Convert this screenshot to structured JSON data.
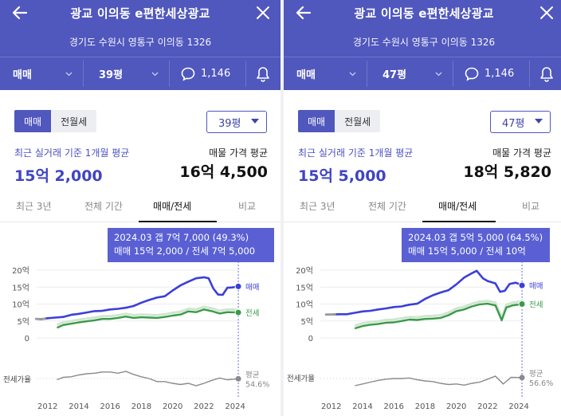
{
  "colors": {
    "header": "#5057bd",
    "accent": "#3f45c2",
    "sale": "#3c3fd8",
    "jeonse": "#3a9a48",
    "ratio": "#8a8a8a"
  },
  "panels": [
    {
      "title": "광교 이의동 e편한세상광교",
      "address": "경기도 수원시 영통구 이의동 1326",
      "deal_type": "매매",
      "size": "39평",
      "comments": "1,146",
      "toggle": {
        "on": "매매",
        "off": "전월세"
      },
      "size_select": "39평",
      "recent_label": "최근 실거래 기준 1개월 평균",
      "recent_value": "15억 2,000",
      "listing_label": "매물 가격 평균",
      "listing_value": "16억 4,500",
      "tabs": [
        "최근 3년",
        "전체 기간",
        "매매/전세",
        "비교"
      ],
      "tooltip": {
        "line1": "2024.03  갭 7억 7,000 (49.3%)",
        "line2": "매매 15억 2,000 / 전세 7억 5,000"
      },
      "chart_data": {
        "type": "line",
        "x_ticks": [
          "2012",
          "2014",
          "2016",
          "2018",
          "2020",
          "2022",
          "2024"
        ],
        "y_ticks": [
          "20억",
          "15억",
          "10억",
          "5억",
          "0"
        ],
        "ylim": [
          0,
          20
        ],
        "series": [
          {
            "name": "매매",
            "values": [
              [
                2011.3,
                5.6
              ],
              [
                2011.6,
                5.5
              ],
              [
                2012.0,
                5.8
              ],
              [
                2012.5,
                6.0
              ],
              [
                2013.0,
                6.2
              ],
              [
                2013.5,
                6.8
              ],
              [
                2014.0,
                7.1
              ],
              [
                2014.5,
                7.5
              ],
              [
                2015.0,
                7.9
              ],
              [
                2015.5,
                8.0
              ],
              [
                2016.0,
                8.4
              ],
              [
                2016.5,
                8.6
              ],
              [
                2017.0,
                8.9
              ],
              [
                2017.5,
                9.4
              ],
              [
                2018.0,
                10.4
              ],
              [
                2018.5,
                11.2
              ],
              [
                2019.0,
                11.9
              ],
              [
                2019.5,
                12.3
              ],
              [
                2020.0,
                14.0
              ],
              [
                2020.5,
                15.5
              ],
              [
                2021.0,
                16.6
              ],
              [
                2021.5,
                17.6
              ],
              [
                2022.0,
                17.9
              ],
              [
                2022.3,
                17.6
              ],
              [
                2022.6,
                14.6
              ],
              [
                2022.9,
                12.8
              ],
              [
                2023.2,
                12.7
              ],
              [
                2023.5,
                14.8
              ],
              [
                2023.8,
                14.9
              ],
              [
                2024.2,
                15.2
              ]
            ]
          },
          {
            "name": "전세",
            "values": [
              [
                2012.6,
                3.0
              ],
              [
                2013.0,
                3.8
              ],
              [
                2013.5,
                4.2
              ],
              [
                2014.0,
                4.6
              ],
              [
                2014.5,
                4.9
              ],
              [
                2015.0,
                5.2
              ],
              [
                2015.5,
                5.6
              ],
              [
                2016.0,
                5.6
              ],
              [
                2016.5,
                5.9
              ],
              [
                2017.0,
                6.3
              ],
              [
                2017.5,
                5.9
              ],
              [
                2018.0,
                6.1
              ],
              [
                2018.5,
                6.0
              ],
              [
                2019.0,
                5.9
              ],
              [
                2019.5,
                6.2
              ],
              [
                2020.0,
                6.6
              ],
              [
                2020.5,
                6.9
              ],
              [
                2021.0,
                7.8
              ],
              [
                2021.5,
                7.6
              ],
              [
                2022.0,
                8.4
              ],
              [
                2022.5,
                7.9
              ],
              [
                2023.0,
                7.2
              ],
              [
                2023.5,
                7.6
              ],
              [
                2024.2,
                7.5
              ]
            ]
          },
          {
            "name": "전세가율",
            "values": [
              [
                2012.6,
                53
              ],
              [
                2013.0,
                57
              ],
              [
                2013.5,
                58
              ],
              [
                2014.0,
                61
              ],
              [
                2014.5,
                63
              ],
              [
                2015.0,
                64
              ],
              [
                2015.5,
                66
              ],
              [
                2016.0,
                66
              ],
              [
                2016.5,
                64
              ],
              [
                2017.0,
                67
              ],
              [
                2017.5,
                62
              ],
              [
                2018.0,
                58
              ],
              [
                2018.5,
                55
              ],
              [
                2019.0,
                50
              ],
              [
                2019.5,
                50
              ],
              [
                2020.0,
                47
              ],
              [
                2020.5,
                45
              ],
              [
                2021.0,
                47
              ],
              [
                2021.5,
                43
              ],
              [
                2022.0,
                47
              ],
              [
                2022.5,
                52
              ],
              [
                2023.0,
                56
              ],
              [
                2023.5,
                53
              ],
              [
                2024.2,
                54.6
              ]
            ]
          }
        ],
        "point_labels": {
          "sale": "매매",
          "jeonse": "전세",
          "ratio_left": "전세가율",
          "ratio_right_1": "평균",
          "ratio_right_2": "54.6%"
        }
      }
    },
    {
      "title": "광교 이의동 e편한세상광교",
      "address": "경기도 수원시 영통구 이의동 1326",
      "deal_type": "매매",
      "size": "47평",
      "comments": "1,146",
      "toggle": {
        "on": "매매",
        "off": "전월세"
      },
      "size_select": "47평",
      "recent_label": "최근 실거래 기준 1개월 평균",
      "recent_value": "15억 5,000",
      "listing_label": "매물 가격 평균",
      "listing_value": "18억 5,820",
      "tabs": [
        "최근 3년",
        "전체 기간",
        "매매/전세",
        "비교"
      ],
      "tooltip": {
        "line1": "2024.03  갭 5억 5,000 (64.5%)",
        "line2": "매매 15억 5,000 / 전세 10억"
      },
      "chart_data": {
        "type": "line",
        "x_ticks": [
          "2012",
          "2014",
          "2016",
          "2018",
          "2020",
          "2022",
          "2024"
        ],
        "y_ticks": [
          "20억",
          "15억",
          "10억",
          "5억",
          "0"
        ],
        "ylim": [
          0,
          20
        ],
        "series": [
          {
            "name": "매매",
            "values": [
              [
                2011.7,
                6.9
              ],
              [
                2012.0,
                6.9
              ],
              [
                2012.5,
                7.0
              ],
              [
                2013.0,
                7.0
              ],
              [
                2013.5,
                7.4
              ],
              [
                2014.0,
                7.8
              ],
              [
                2014.5,
                8.0
              ],
              [
                2015.0,
                8.4
              ],
              [
                2015.5,
                8.7
              ],
              [
                2016.0,
                9.1
              ],
              [
                2016.5,
                9.3
              ],
              [
                2017.0,
                9.8
              ],
              [
                2017.5,
                10.1
              ],
              [
                2018.0,
                11.5
              ],
              [
                2018.5,
                12.6
              ],
              [
                2019.0,
                13.4
              ],
              [
                2019.5,
                14.1
              ],
              [
                2020.0,
                15.8
              ],
              [
                2020.5,
                17.8
              ],
              [
                2021.0,
                19.1
              ],
              [
                2021.3,
                19.8
              ],
              [
                2021.7,
                17.6
              ],
              [
                2022.0,
                16.8
              ],
              [
                2022.5,
                16.1
              ],
              [
                2022.8,
                13.6
              ],
              [
                2023.1,
                13.9
              ],
              [
                2023.4,
                15.9
              ],
              [
                2023.8,
                16.3
              ],
              [
                2024.2,
                15.5
              ]
            ]
          },
          {
            "name": "전세",
            "values": [
              [
                2013.5,
                2.8
              ],
              [
                2014.0,
                3.5
              ],
              [
                2014.5,
                3.9
              ],
              [
                2015.0,
                4.1
              ],
              [
                2015.5,
                4.5
              ],
              [
                2016.0,
                4.6
              ],
              [
                2016.5,
                5.0
              ],
              [
                2017.0,
                5.4
              ],
              [
                2017.5,
                5.3
              ],
              [
                2018.0,
                5.6
              ],
              [
                2018.5,
                5.7
              ],
              [
                2019.0,
                5.9
              ],
              [
                2019.5,
                6.7
              ],
              [
                2020.0,
                7.9
              ],
              [
                2020.5,
                8.4
              ],
              [
                2021.0,
                9.3
              ],
              [
                2021.5,
                9.9
              ],
              [
                2022.0,
                10.1
              ],
              [
                2022.5,
                9.6
              ],
              [
                2022.9,
                5.2
              ],
              [
                2023.2,
                9.0
              ],
              [
                2023.6,
                9.6
              ],
              [
                2024.2,
                10.0
              ]
            ]
          },
          {
            "name": "전세가율",
            "values": [
              [
                2013.5,
                43
              ],
              [
                2014.0,
                46
              ],
              [
                2014.5,
                49
              ],
              [
                2015.0,
                52
              ],
              [
                2015.5,
                54
              ],
              [
                2016.0,
                55
              ],
              [
                2016.5,
                55
              ],
              [
                2017.0,
                56
              ],
              [
                2017.5,
                53
              ],
              [
                2018.0,
                51
              ],
              [
                2018.5,
                50
              ],
              [
                2019.0,
                47
              ],
              [
                2019.5,
                45
              ],
              [
                2020.0,
                46
              ],
              [
                2020.5,
                44
              ],
              [
                2021.0,
                47
              ],
              [
                2021.5,
                49
              ],
              [
                2022.0,
                54
              ],
              [
                2022.5,
                59
              ],
              [
                2023.0,
                46
              ],
              [
                2023.5,
                57
              ],
              [
                2024.2,
                56.6
              ]
            ]
          }
        ],
        "point_labels": {
          "sale": "매매",
          "jeonse": "전세",
          "ratio_left": "전세가율",
          "ratio_right_1": "평균",
          "ratio_right_2": "56.6%"
        }
      }
    }
  ]
}
